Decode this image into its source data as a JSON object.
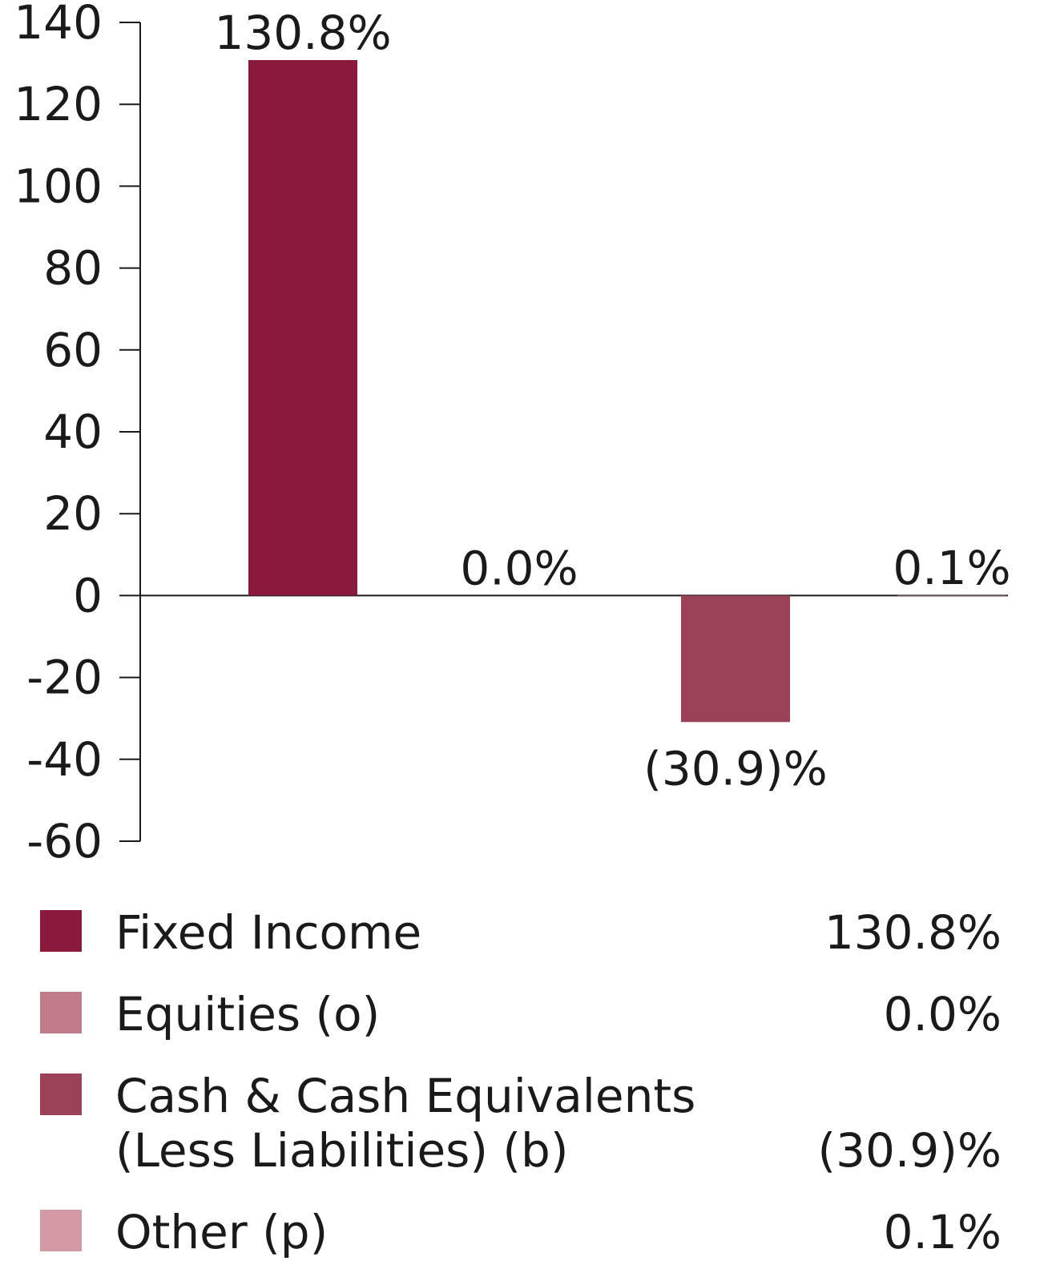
{
  "chart_data": {
    "type": "bar",
    "categories": [
      "Fixed Income",
      "Equities (o)",
      "Cash & Cash Equivalents\n(Less Liabilities) (b)",
      "Other (p)"
    ],
    "values": [
      130.8,
      0.0,
      -30.9,
      0.1
    ],
    "data_labels": [
      "130.8%",
      "0.0%",
      "(30.9)%",
      "0.1%"
    ],
    "colors": [
      "#8a1a3c",
      "#c27b8a",
      "#9c4258",
      "#d39aa5"
    ],
    "ylim": [
      -60,
      140
    ],
    "yticks": [
      140,
      120,
      100,
      80,
      60,
      40,
      20,
      0,
      -20,
      -40,
      -60
    ],
    "grid": false,
    "legend_placement": "bottom"
  },
  "legend": [
    {
      "label": "Fixed Income",
      "value": "130.8%",
      "color": "#8a1a3c"
    },
    {
      "label": "Equities (o)",
      "value": "0.0%",
      "color": "#c27b8a"
    },
    {
      "label": "Cash & Cash Equivalents\n(Less Liabilities) (b)",
      "value": "(30.9)%",
      "color": "#9c4258"
    },
    {
      "label": "Other (p)",
      "value": "0.1%",
      "color": "#d39aa5"
    }
  ]
}
